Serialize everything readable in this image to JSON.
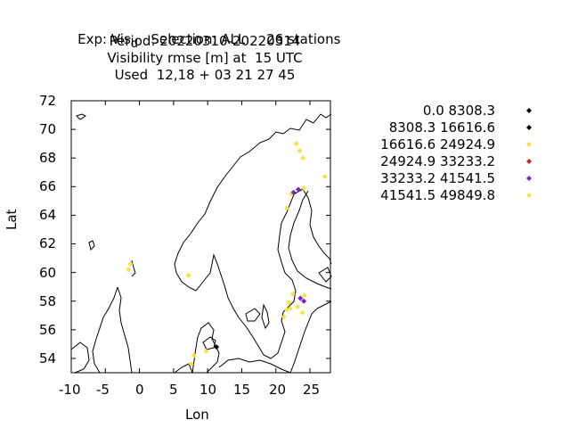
{
  "title": {
    "line1_prefix": "Exp: Vis",
    "line1_subscript": "d",
    "line1_suffix": "   Selection: ALL     26 stations",
    "line2": "Period: 20220310-20220314",
    "line3": "Visibility rmse [m] at  15 UTC",
    "line4": "Used  12,18 + 03 21 27 45"
  },
  "axes": {
    "xlabel": "Lon",
    "ylabel": "Lat",
    "xlim": [
      -10,
      28
    ],
    "ylim": [
      53,
      72
    ],
    "xticks": [
      -10,
      -5,
      0,
      5,
      10,
      15,
      20,
      25
    ],
    "yticks": [
      54,
      56,
      58,
      60,
      62,
      64,
      66,
      68,
      70,
      72
    ],
    "xtick_labels": [
      "-10",
      "-5",
      "0",
      "5",
      "10",
      "15",
      "20",
      "25"
    ],
    "ytick_labels": [
      "54",
      "56",
      "58",
      "60",
      "62",
      "64",
      "66",
      "68",
      "70",
      "72"
    ]
  },
  "legend": [
    {
      "label": "0.0 8308.3",
      "color": "#000000"
    },
    {
      "label": "8308.3 16616.6",
      "color": "#000000"
    },
    {
      "label": "16616.6 24924.9",
      "color": "#f5e342"
    },
    {
      "label": "24924.9 33233.2",
      "color": "#c8281e"
    },
    {
      "label": "33233.2 41541.5",
      "color": "#7a1fd0"
    },
    {
      "label": "41541.5 49849.8",
      "color": "#f5e342"
    }
  ],
  "chart_data": {
    "type": "scatter",
    "x_name": "Lon",
    "y_name": "Lat",
    "points": [
      {
        "lon": -1.3,
        "lat": 60.6,
        "cls": 5
      },
      {
        "lon": -1.6,
        "lat": 60.2,
        "cls": 5
      },
      {
        "lon": 7.2,
        "lat": 59.8,
        "cls": 2
      },
      {
        "lon": 8.0,
        "lat": 54.2,
        "cls": 2
      },
      {
        "lon": 7.6,
        "lat": 53.6,
        "cls": 2
      },
      {
        "lon": 9.8,
        "lat": 54.5,
        "cls": 2
      },
      {
        "lon": 11.3,
        "lat": 54.8,
        "cls": 0
      },
      {
        "lon": 23.0,
        "lat": 69.0,
        "cls": 2
      },
      {
        "lon": 23.5,
        "lat": 68.5,
        "cls": 2
      },
      {
        "lon": 24.0,
        "lat": 68.0,
        "cls": 2
      },
      {
        "lon": 27.2,
        "lat": 66.7,
        "cls": 5
      },
      {
        "lon": 22.3,
        "lat": 65.5,
        "cls": 2
      },
      {
        "lon": 22.6,
        "lat": 65.6,
        "cls": 4
      },
      {
        "lon": 23.3,
        "lat": 65.8,
        "cls": 4
      },
      {
        "lon": 24.1,
        "lat": 65.9,
        "cls": 5
      },
      {
        "lon": 21.6,
        "lat": 64.5,
        "cls": 2
      },
      {
        "lon": 24.2,
        "lat": 58.4,
        "cls": 2
      },
      {
        "lon": 22.5,
        "lat": 58.5,
        "cls": 2
      },
      {
        "lon": 23.6,
        "lat": 58.2,
        "cls": 4
      },
      {
        "lon": 24.1,
        "lat": 58.0,
        "cls": 4
      },
      {
        "lon": 21.9,
        "lat": 57.9,
        "cls": 2
      },
      {
        "lon": 23.2,
        "lat": 57.6,
        "cls": 2
      },
      {
        "lon": 21.2,
        "lat": 56.9,
        "cls": 2
      },
      {
        "lon": 21.6,
        "lat": 57.4,
        "cls": 2
      },
      {
        "lon": 22.1,
        "lat": 57.5,
        "cls": 2
      },
      {
        "lon": 23.9,
        "lat": 57.2,
        "cls": 2
      }
    ]
  }
}
